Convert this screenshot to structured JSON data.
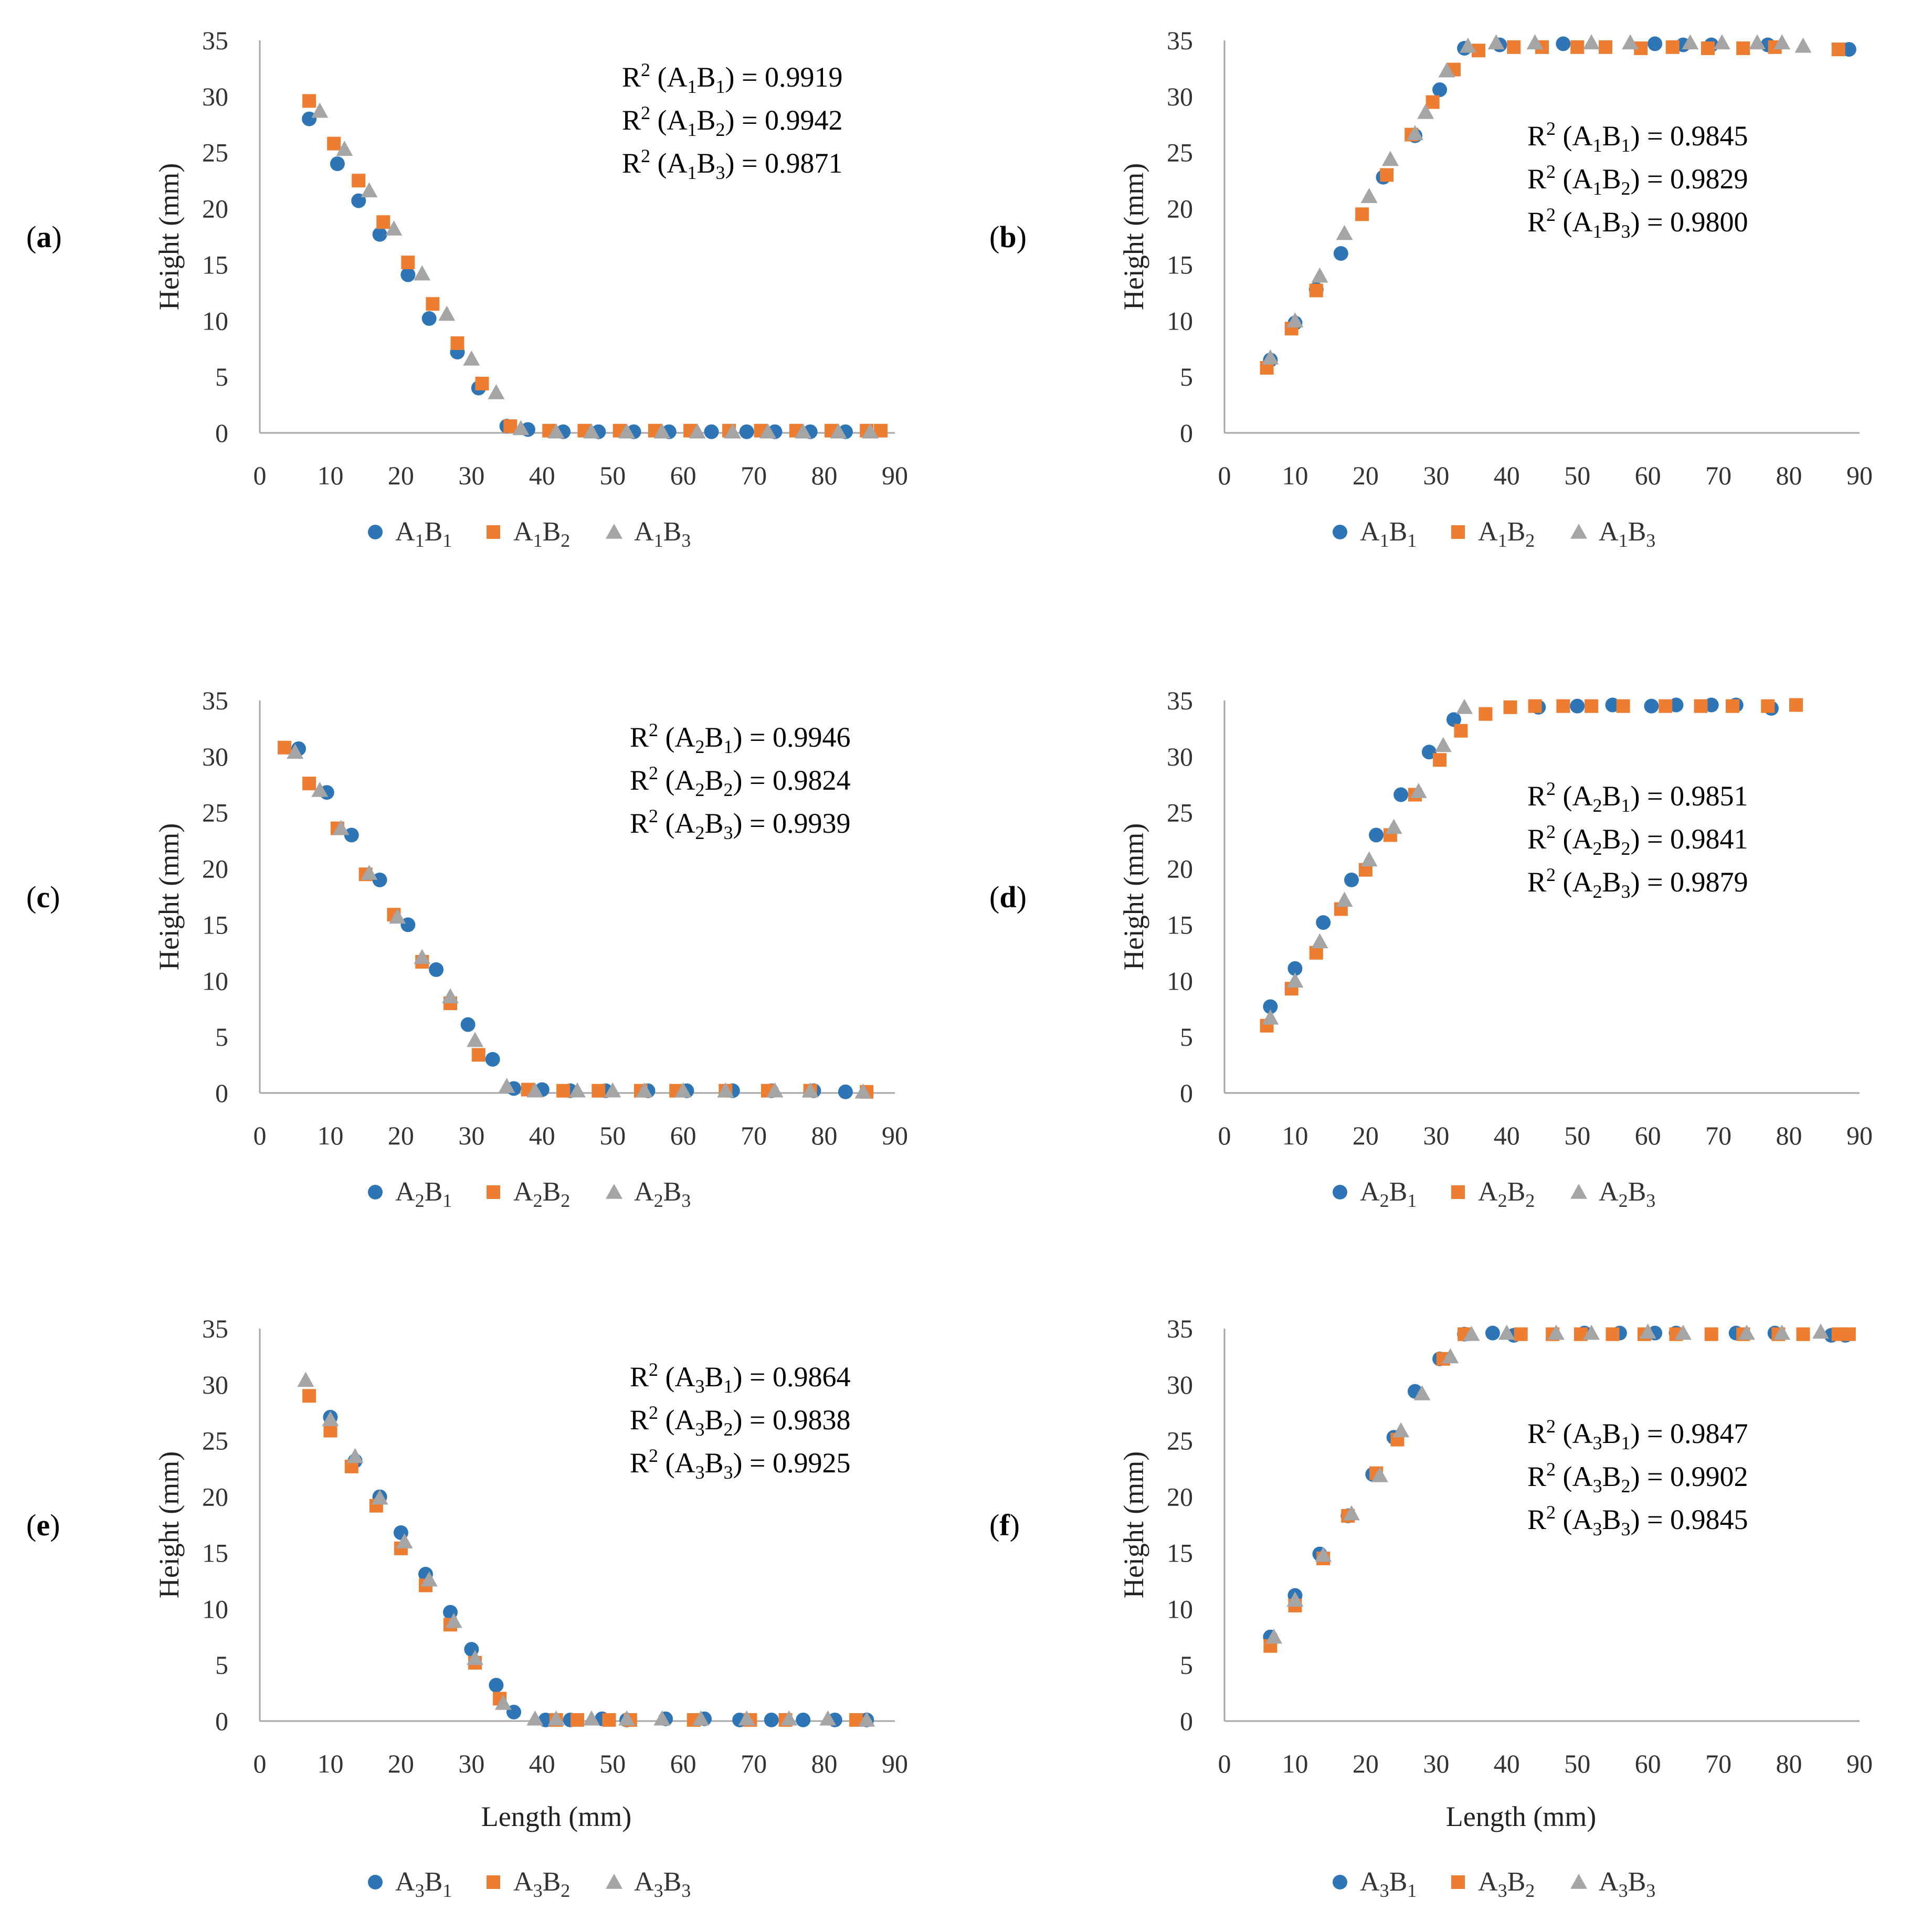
{
  "colors": {
    "B1": "#2E75B6",
    "B2": "#ED7D31",
    "B3": "#A5A5A5",
    "axis": "#A6A6A6"
  },
  "common": {
    "y_axis_title": "Height (mm)",
    "x_axis_title": "Length (mm)",
    "x_ticks": [
      0,
      10,
      20,
      30,
      40,
      50,
      60,
      70,
      80,
      90
    ],
    "y_ticks": [
      0,
      5,
      10,
      15,
      20,
      25,
      30,
      35
    ],
    "xlim": [
      0,
      90
    ],
    "ylim": [
      0,
      35
    ]
  },
  "chart_data": [
    {
      "panel": "(a)",
      "label_letter": "a",
      "type": "scatter",
      "row": 0,
      "col": 0,
      "show_xlabel": false,
      "group": "A1",
      "r2": [
        {
          "series": "A1B1",
          "value": "0.9919"
        },
        {
          "series": "A1B2",
          "value": "0.9942"
        },
        {
          "series": "A1B3",
          "value": "0.9871"
        }
      ],
      "series": [
        {
          "key": "B1",
          "name": "A1B1",
          "marker": "circle",
          "x": [
            7,
            11,
            14,
            17,
            21,
            24,
            28,
            31,
            35,
            38,
            43,
            48,
            53,
            58,
            64,
            69,
            73,
            78,
            83
          ],
          "y": [
            28,
            24,
            20.7,
            17.7,
            14.1,
            10.2,
            7.2,
            4.0,
            0.6,
            0.3,
            0.1,
            0.1,
            0.1,
            0.1,
            0.1,
            0.1,
            0.1,
            0.1,
            0.1
          ]
        },
        {
          "key": "B2",
          "name": "A1B2",
          "marker": "square",
          "x": [
            7,
            10.5,
            14,
            17.5,
            21,
            24.5,
            28,
            31.5,
            35.5,
            41,
            46,
            51,
            56,
            61,
            66.5,
            71,
            76,
            81,
            86,
            88
          ],
          "y": [
            29.6,
            25.8,
            22.5,
            18.8,
            15.2,
            11.5,
            8.0,
            4.4,
            0.6,
            0.2,
            0.2,
            0.2,
            0.2,
            0.2,
            0.2,
            0.2,
            0.2,
            0.2,
            0.2,
            0.2
          ]
        },
        {
          "key": "B3",
          "name": "A1B3",
          "marker": "triangle",
          "x": [
            8.5,
            12,
            15.5,
            19,
            23,
            26.5,
            30,
            33.5,
            37,
            42,
            47,
            52,
            57,
            62,
            67,
            72,
            77,
            82,
            86.5
          ],
          "y": [
            28.7,
            25.3,
            21.6,
            18.2,
            14.2,
            10.6,
            6.6,
            3.6,
            0.4,
            0.1,
            0.1,
            0.1,
            0.1,
            0.1,
            0.1,
            0.1,
            0.1,
            0.1,
            0.1
          ]
        }
      ]
    },
    {
      "panel": "(b)",
      "label_letter": "b",
      "type": "scatter",
      "row": 0,
      "col": 1,
      "show_xlabel": false,
      "group": "A1",
      "r2": [
        {
          "series": "A1B1",
          "value": "0.9845"
        },
        {
          "series": "A1B2",
          "value": "0.9829"
        },
        {
          "series": "A1B3",
          "value": "0.9800"
        }
      ],
      "series": [
        {
          "key": "B1",
          "name": "A1B1",
          "marker": "circle",
          "x": [
            6.5,
            10,
            13,
            16.5,
            22.5,
            27,
            30.5,
            34,
            39,
            48,
            61,
            65,
            69,
            77,
            88.5
          ],
          "y": [
            6.5,
            9.8,
            12.8,
            16.0,
            22.8,
            26.5,
            30.6,
            34.3,
            34.6,
            34.7,
            34.7,
            34.6,
            34.6,
            34.6,
            34.2
          ]
        },
        {
          "key": "B2",
          "name": "A1B2",
          "marker": "square",
          "x": [
            6,
            9.5,
            13,
            19.5,
            23,
            26.5,
            29.5,
            32.5,
            36,
            41,
            45,
            50,
            54,
            59,
            63.5,
            68.5,
            73.5,
            78,
            87
          ],
          "y": [
            5.8,
            9.3,
            12.7,
            19.5,
            23.0,
            26.6,
            29.5,
            32.4,
            34.1,
            34.4,
            34.4,
            34.4,
            34.4,
            34.3,
            34.4,
            34.3,
            34.3,
            34.4,
            34.2
          ]
        },
        {
          "key": "B3",
          "name": "A1B3",
          "marker": "triangle",
          "x": [
            6.5,
            10,
            13.5,
            17,
            20.5,
            23.5,
            27,
            28.5,
            31.5,
            34.5,
            38.5,
            44,
            52,
            57.5,
            66,
            70.5,
            75.5,
            79,
            82
          ],
          "y": [
            6.7,
            10.0,
            14.0,
            17.8,
            21.1,
            24.4,
            26.7,
            28.6,
            32.3,
            34.5,
            34.8,
            34.8,
            34.8,
            34.8,
            34.8,
            34.8,
            34.8,
            34.8,
            34.5
          ]
        }
      ]
    },
    {
      "panel": "(c)",
      "label_letter": "c",
      "type": "scatter",
      "row": 1,
      "col": 0,
      "show_xlabel": false,
      "group": "A2",
      "r2": [
        {
          "series": "A2B1",
          "value": "0.9946"
        },
        {
          "series": "A2B2",
          "value": "0.9824"
        },
        {
          "series": "A2B3",
          "value": "0.9939"
        }
      ],
      "series": [
        {
          "key": "B1",
          "name": "A2B1",
          "marker": "circle",
          "x": [
            5.5,
            9.5,
            13,
            17,
            21,
            25,
            29.5,
            33,
            36,
            40,
            44,
            49,
            55,
            60.5,
            67,
            72.5,
            78.5,
            83
          ],
          "y": [
            30.7,
            26.8,
            23.0,
            19.0,
            15.0,
            11.0,
            6.1,
            3.0,
            0.4,
            0.3,
            0.2,
            0.2,
            0.2,
            0.2,
            0.2,
            0.2,
            0.2,
            0.1
          ]
        },
        {
          "key": "B2",
          "name": "A2B2",
          "marker": "square",
          "x": [
            3.5,
            7,
            11,
            15,
            19,
            23,
            27,
            31,
            38,
            43,
            48,
            54,
            59,
            66,
            72,
            78,
            86
          ],
          "y": [
            30.8,
            27.6,
            23.6,
            19.5,
            15.9,
            11.7,
            8.0,
            3.4,
            0.3,
            0.2,
            0.2,
            0.2,
            0.2,
            0.2,
            0.2,
            0.2,
            0.1
          ]
        },
        {
          "key": "B3",
          "name": "A2B3",
          "marker": "triangle",
          "x": [
            5,
            8.5,
            11.5,
            15.5,
            19.5,
            23,
            27,
            30.5,
            35,
            39,
            45,
            50,
            54.5,
            60,
            66,
            73,
            78,
            85.5
          ],
          "y": [
            30.4,
            27.0,
            23.6,
            19.6,
            15.7,
            12.1,
            8.6,
            4.7,
            0.6,
            0.2,
            0.2,
            0.2,
            0.2,
            0.2,
            0.2,
            0.2,
            0.2,
            0.1
          ]
        }
      ]
    },
    {
      "panel": "(d)",
      "label_letter": "d",
      "type": "scatter",
      "row": 1,
      "col": 1,
      "show_xlabel": false,
      "group": "A2",
      "r2": [
        {
          "series": "A2B1",
          "value": "0.9851"
        },
        {
          "series": "A2B2",
          "value": "0.9841"
        },
        {
          "series": "A2B3",
          "value": "0.9879"
        }
      ],
      "series": [
        {
          "key": "B1",
          "name": "A2B1",
          "marker": "circle",
          "x": [
            6.5,
            10,
            14,
            18,
            21.5,
            25,
            29,
            32.5,
            44.5,
            50,
            55,
            60.5,
            64,
            69,
            72.5,
            77.5
          ],
          "y": [
            7.7,
            11.1,
            15.2,
            19.0,
            23.0,
            26.6,
            30.4,
            33.3,
            34.4,
            34.5,
            34.6,
            34.5,
            34.6,
            34.6,
            34.6,
            34.3
          ]
        },
        {
          "key": "B2",
          "name": "A2B2",
          "marker": "square",
          "x": [
            6,
            9.5,
            13,
            16.5,
            20,
            23.5,
            27,
            30.5,
            33.5,
            37,
            40.5,
            44,
            48,
            52,
            56.5,
            62.5,
            67.5,
            72,
            77,
            81
          ],
          "y": [
            6.0,
            9.3,
            12.5,
            16.4,
            19.9,
            23.0,
            26.6,
            29.7,
            32.3,
            33.8,
            34.4,
            34.5,
            34.5,
            34.5,
            34.5,
            34.5,
            34.5,
            34.5,
            34.5,
            34.6
          ]
        },
        {
          "key": "B3",
          "name": "A2B3",
          "marker": "triangle",
          "x": [
            6.5,
            10,
            13.5,
            17,
            20.5,
            24,
            27.5,
            31,
            34
          ],
          "y": [
            6.7,
            10.0,
            13.5,
            17.2,
            20.8,
            23.7,
            26.9,
            31.0,
            34.4
          ]
        }
      ]
    },
    {
      "panel": "(e)",
      "label_letter": "e",
      "type": "scatter",
      "row": 2,
      "col": 0,
      "show_xlabel": true,
      "group": "A3",
      "r2": [
        {
          "series": "A3B1",
          "value": "0.9864"
        },
        {
          "series": "A3B2",
          "value": "0.9838"
        },
        {
          "series": "A3B3",
          "value": "0.9925"
        }
      ],
      "series": [
        {
          "key": "B1",
          "name": "A3B1",
          "marker": "circle",
          "x": [
            10,
            13.5,
            17,
            20,
            23.5,
            27,
            30,
            33.5,
            36,
            40.5,
            44,
            48.5,
            52,
            57.5,
            63,
            68,
            72.5,
            77,
            81.5,
            86
          ],
          "y": [
            27.1,
            23.2,
            20.0,
            16.8,
            13.1,
            9.7,
            6.4,
            3.2,
            0.8,
            0.1,
            0.1,
            0.2,
            0.1,
            0.2,
            0.2,
            0.1,
            0.1,
            0.1,
            0.1,
            0.1
          ]
        },
        {
          "key": "B2",
          "name": "A3B2",
          "marker": "square",
          "x": [
            7,
            10,
            13,
            16.5,
            20,
            23.5,
            27,
            30.5,
            34,
            42,
            45,
            49.5,
            52.5,
            61.5,
            69.5,
            74.5,
            84.5
          ],
          "y": [
            29.0,
            25.9,
            22.7,
            19.2,
            15.4,
            12.1,
            8.6,
            5.2,
            2.0,
            0.1,
            0.1,
            0.1,
            0.1,
            0.1,
            0.1,
            0.1,
            0.1
          ]
        },
        {
          "key": "B3",
          "name": "A3B3",
          "marker": "triangle",
          "x": [
            6.5,
            10,
            13.5,
            17,
            20.5,
            24,
            27.5,
            30.5,
            34.5,
            39,
            42,
            47,
            52,
            57,
            62.5,
            69,
            75,
            80.5,
            86
          ],
          "y": [
            30.4,
            26.9,
            23.6,
            19.9,
            16.0,
            12.6,
            8.9,
            5.6,
            1.6,
            0.2,
            0.2,
            0.2,
            0.2,
            0.2,
            0.2,
            0.2,
            0.2,
            0.2,
            0.1
          ]
        }
      ]
    },
    {
      "panel": "(f)",
      "label_letter": "f",
      "type": "scatter",
      "row": 2,
      "col": 1,
      "show_xlabel": true,
      "group": "A3",
      "r2": [
        {
          "series": "A3B1",
          "value": "0.9847"
        },
        {
          "series": "A3B2",
          "value": "0.9902"
        },
        {
          "series": "A3B3",
          "value": "0.9845"
        }
      ],
      "series": [
        {
          "key": "B1",
          "name": "A3B1",
          "marker": "circle",
          "x": [
            6.5,
            10,
            13.5,
            17.5,
            21,
            24,
            27,
            30.5,
            34,
            38,
            41,
            51,
            56,
            61,
            64,
            72.5,
            78,
            86,
            88
          ],
          "y": [
            7.5,
            11.2,
            14.9,
            18.3,
            22.0,
            25.3,
            29.4,
            32.3,
            34.5,
            34.6,
            34.4,
            34.6,
            34.6,
            34.6,
            34.6,
            34.6,
            34.6,
            34.4,
            34.4
          ]
        },
        {
          "key": "B2",
          "name": "A3B2",
          "marker": "square",
          "x": [
            6.5,
            10,
            14,
            17.5,
            21.5,
            24.5,
            31,
            34,
            42,
            46.5,
            50.5,
            55,
            59.5,
            64,
            69,
            73.5,
            78.5,
            82,
            87,
            88.5
          ],
          "y": [
            6.7,
            10.3,
            14.5,
            18.3,
            22.1,
            25.1,
            32.3,
            34.5,
            34.5,
            34.5,
            34.5,
            34.5,
            34.5,
            34.5,
            34.5,
            34.5,
            34.5,
            34.5,
            34.5,
            34.5
          ]
        },
        {
          "key": "B3",
          "name": "A3B3",
          "marker": "triangle",
          "x": [
            7,
            10,
            14,
            18,
            22,
            25,
            28,
            32,
            35,
            40,
            47,
            52,
            60,
            65,
            74,
            79,
            84.5
          ],
          "y": [
            7.5,
            10.8,
            14.8,
            18.5,
            21.9,
            25.9,
            29.2,
            32.5,
            34.5,
            34.6,
            34.6,
            34.6,
            34.7,
            34.6,
            34.6,
            34.6,
            34.7
          ]
        }
      ]
    }
  ]
}
